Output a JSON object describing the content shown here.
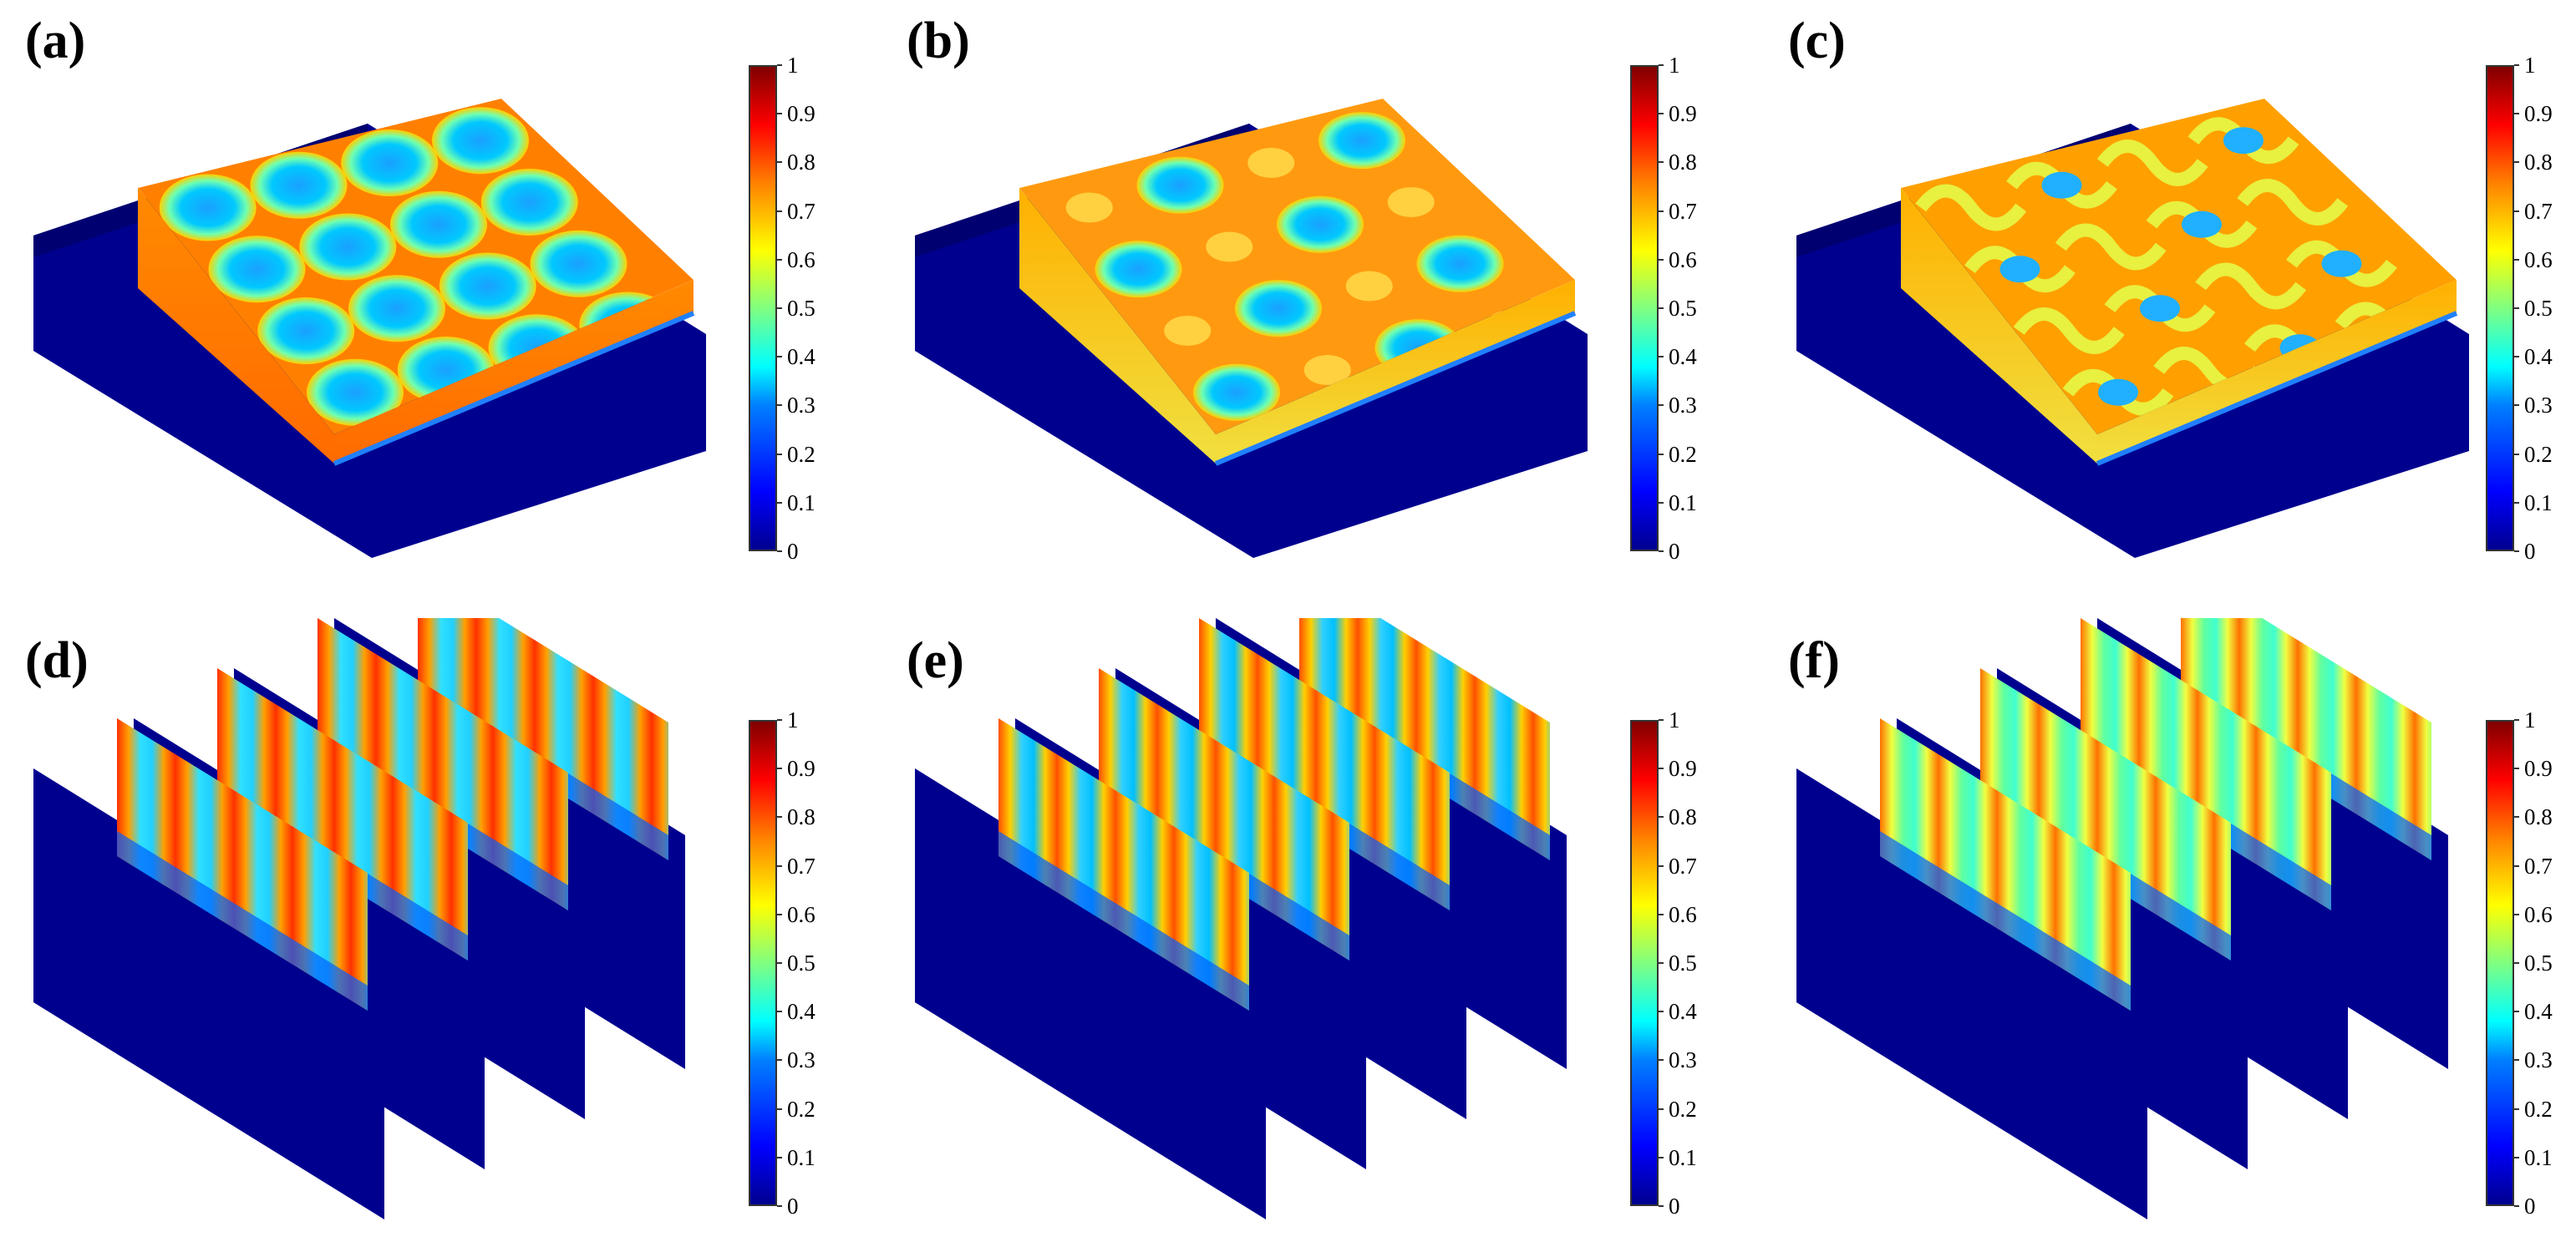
{
  "panels": [
    {
      "label": "(a)",
      "kind": "slab",
      "pattern": "circles"
    },
    {
      "label": "(b)",
      "kind": "slab",
      "pattern": "squares"
    },
    {
      "label": "(c)",
      "kind": "slab",
      "pattern": "wavy"
    },
    {
      "label": "(d)",
      "kind": "slices",
      "pattern": "circles"
    },
    {
      "label": "(e)",
      "kind": "slices",
      "pattern": "squares"
    },
    {
      "label": "(f)",
      "kind": "slices",
      "pattern": "wavy"
    }
  ],
  "colorbar": {
    "ticks_top_row": [
      "1",
      "0.9",
      "0.8",
      "0.7",
      "0.6",
      "0.5",
      "0.4",
      "0.3",
      "0.2",
      "0.1",
      "0"
    ],
    "ticks_bottom_row": [
      "1",
      "0.9",
      "0.8",
      "0.7",
      "0.6",
      "0.5",
      "0.4",
      "0.3",
      "0.2",
      "0.1",
      "0"
    ],
    "range": [
      0,
      1
    ],
    "colormap": "jet"
  },
  "colors": {
    "base": "#00008f",
    "matrix_orange": "#ff7a00",
    "matrix_yellow": "#ffd400",
    "inclusion_cyan": "#00c8ff",
    "inclusion_blue": "#0078ff"
  }
}
